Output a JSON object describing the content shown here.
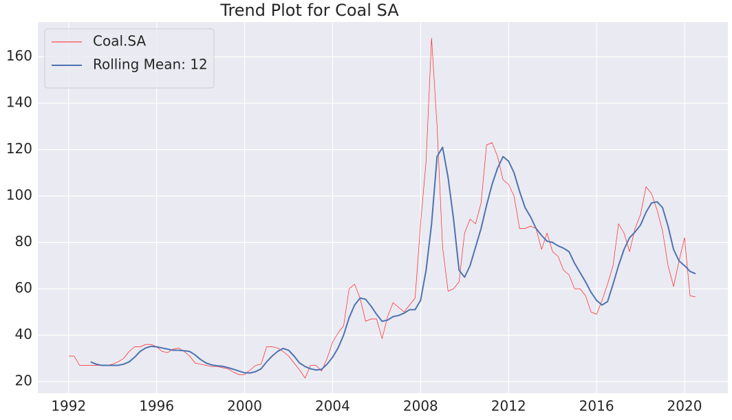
{
  "chart_data": {
    "type": "line",
    "title": "Trend Plot for Coal SA",
    "x": [
      1992,
      1992.25,
      1992.5,
      1992.75,
      1993,
      1993.25,
      1993.5,
      1993.75,
      1994,
      1994.25,
      1994.5,
      1994.75,
      1995,
      1995.25,
      1995.5,
      1995.75,
      1996,
      1996.25,
      1996.5,
      1996.75,
      1997,
      1997.25,
      1997.5,
      1997.75,
      1998,
      1998.25,
      1998.5,
      1998.75,
      1999,
      1999.25,
      1999.5,
      1999.75,
      2000,
      2000.25,
      2000.5,
      2000.75,
      2001,
      2001.25,
      2001.5,
      2001.75,
      2002,
      2002.25,
      2002.5,
      2002.75,
      2003,
      2003.25,
      2003.5,
      2003.75,
      2004,
      2004.25,
      2004.5,
      2004.75,
      2005,
      2005.25,
      2005.5,
      2005.75,
      2006,
      2006.25,
      2006.5,
      2006.75,
      2007,
      2007.25,
      2007.5,
      2007.75,
      2008,
      2008.25,
      2008.5,
      2008.75,
      2009,
      2009.25,
      2009.5,
      2009.75,
      2010,
      2010.25,
      2010.5,
      2010.75,
      2011,
      2011.25,
      2011.5,
      2011.75,
      2012,
      2012.25,
      2012.5,
      2012.75,
      2013,
      2013.25,
      2013.5,
      2013.75,
      2014,
      2014.25,
      2014.5,
      2014.75,
      2015,
      2015.25,
      2015.5,
      2015.75,
      2016,
      2016.25,
      2016.5,
      2016.75,
      2017,
      2017.25,
      2017.5,
      2017.75,
      2018,
      2018.25,
      2018.5,
      2018.75,
      2019,
      2019.25,
      2019.5,
      2019.75,
      2020,
      2020.25,
      2020.5
    ],
    "series": [
      {
        "name": "Coal.SA",
        "color": "#ff2020",
        "width": 0.7,
        "values": [
          31,
          31,
          27,
          27,
          27,
          27,
          27,
          27,
          27.5,
          28.5,
          30,
          33,
          35,
          35,
          36,
          36,
          35,
          33,
          32.5,
          34,
          34.5,
          33,
          31,
          28,
          27.5,
          27,
          26.5,
          26.5,
          26,
          25.5,
          24,
          23,
          23,
          25,
          27,
          27.5,
          35,
          35,
          34.5,
          33,
          31,
          28,
          25,
          21.5,
          27,
          27,
          24.5,
          30,
          37,
          41,
          44,
          60,
          62,
          56,
          46,
          47,
          47,
          38.5,
          48,
          54,
          52,
          50,
          53,
          56,
          88,
          115,
          168,
          130,
          78,
          59,
          60,
          63,
          84,
          90,
          88,
          97,
          122,
          123,
          117,
          107,
          105,
          100,
          86,
          86,
          87,
          86,
          77,
          84,
          76,
          74,
          68,
          66,
          60,
          60,
          57,
          50,
          49,
          55,
          62,
          70,
          88,
          84,
          76,
          86,
          92,
          104,
          101,
          94,
          85,
          70,
          61,
          72,
          82,
          57,
          56.5
        ]
      },
      {
        "name": "Rolling Mean: 12",
        "color": "#4c72b0",
        "width": 2,
        "values": [
          null,
          null,
          null,
          null,
          28.5,
          27.5,
          27,
          27,
          27,
          27,
          27.5,
          28.5,
          30.5,
          33,
          34.5,
          35.2,
          35,
          34.5,
          34,
          33.5,
          33.5,
          33.3,
          33,
          31.5,
          29.5,
          28,
          27.2,
          26.8,
          26.6,
          26,
          25.3,
          24.5,
          23.8,
          23.7,
          24.3,
          25.5,
          28.5,
          31,
          33,
          34.3,
          33.5,
          31,
          28,
          26.5,
          25.5,
          25,
          25.3,
          27.5,
          30.5,
          34.5,
          40,
          47.5,
          53,
          56,
          55.5,
          52.5,
          49,
          46,
          46.5,
          48,
          48.5,
          49.5,
          51,
          51,
          55,
          68,
          88,
          117,
          121,
          108,
          90,
          68,
          65,
          70,
          78,
          86,
          96,
          105,
          112,
          117,
          115,
          110,
          102,
          95,
          91,
          86,
          83,
          80.5,
          80,
          78.5,
          77.5,
          76,
          71,
          67,
          63,
          58.5,
          55,
          53,
          54.5,
          62,
          70,
          77,
          82,
          84.5,
          87.5,
          93,
          97,
          97.5,
          95,
          87,
          77,
          72,
          70,
          67.5,
          66.5
        ]
      }
    ],
    "xlim": [
      1990.6,
      2021.97
    ],
    "ylim": [
      15,
      175
    ],
    "xticks": [
      1992,
      1996,
      2000,
      2004,
      2008,
      2012,
      2016,
      2020
    ],
    "yticks": [
      20,
      40,
      60,
      80,
      100,
      120,
      140,
      160
    ],
    "grid": true,
    "legend": "upper left"
  }
}
